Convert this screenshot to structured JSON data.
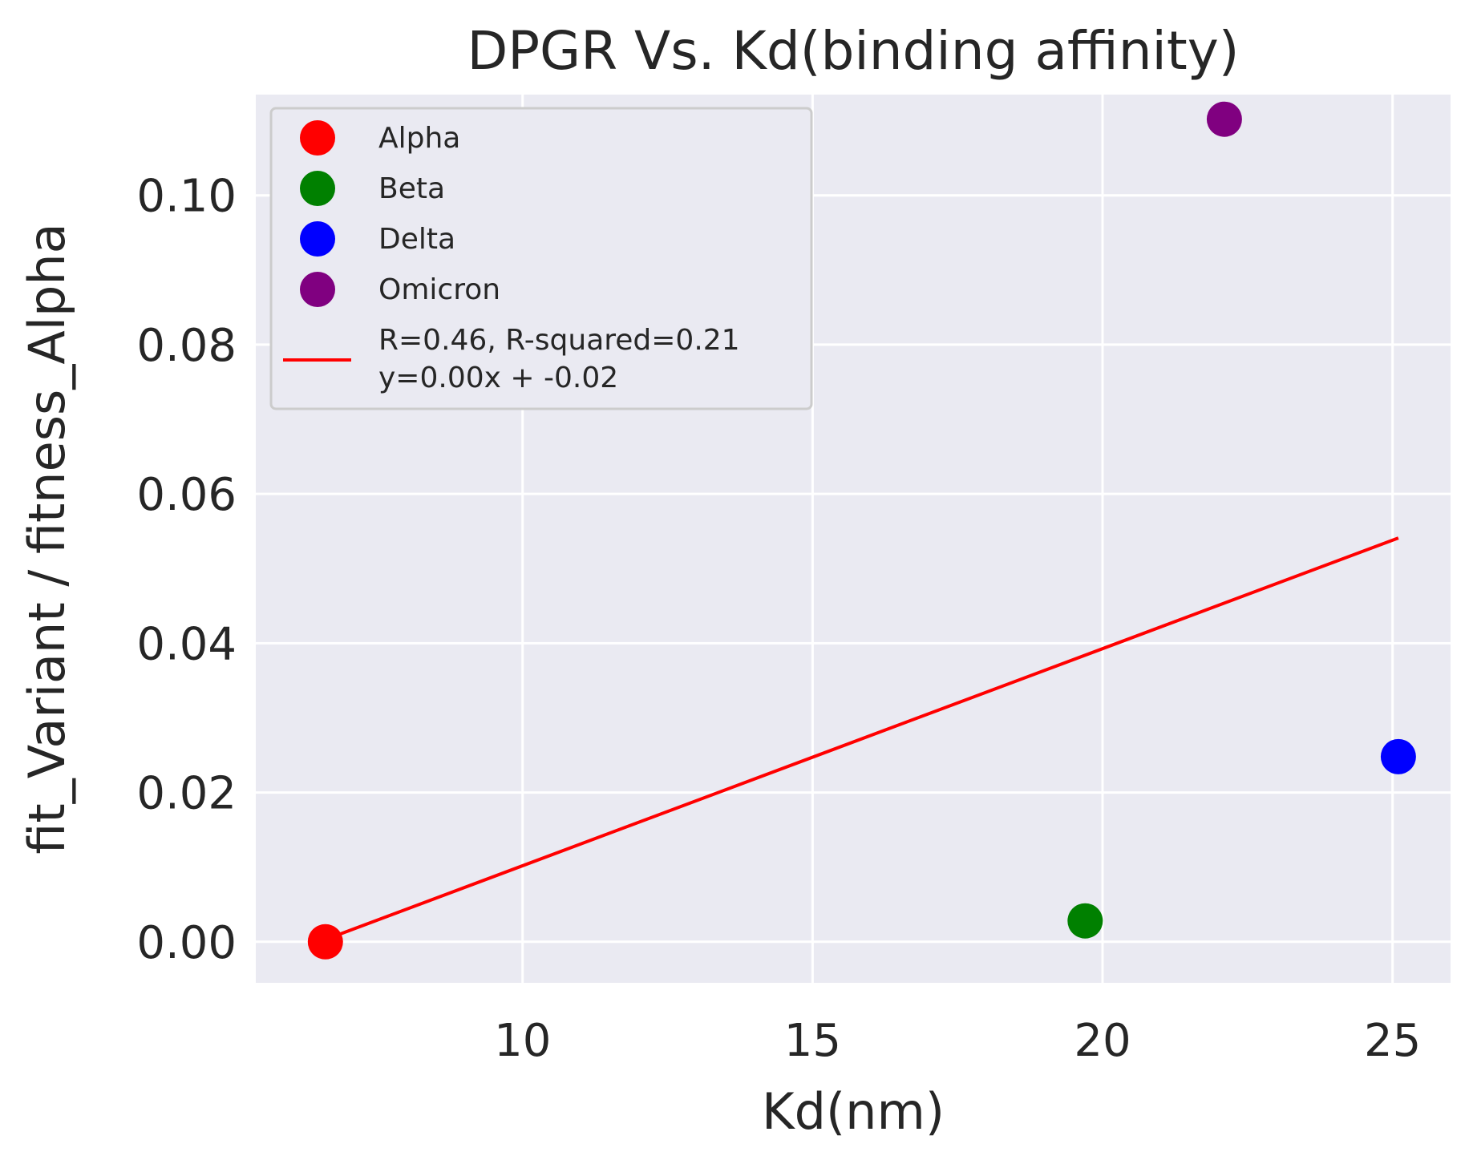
{
  "chart_data": {
    "type": "scatter",
    "title": "DPGR Vs. Kd(binding affinity)",
    "xlabel": "Kd(nm)",
    "ylabel": "fit_Variant / fitness_Alpha",
    "xlim": [
      5.4,
      26.0
    ],
    "ylim": [
      -0.0055,
      0.1135
    ],
    "xticks": [
      10,
      15,
      20,
      25
    ],
    "xtick_labels": [
      "10",
      "15",
      "20",
      "25"
    ],
    "yticks": [
      0.0,
      0.02,
      0.04,
      0.06,
      0.08,
      0.1
    ],
    "ytick_labels": [
      "0.00",
      "0.02",
      "0.04",
      "0.06",
      "0.08",
      "0.10"
    ],
    "grid": true,
    "legend_position": "top-left",
    "series": [
      {
        "name": "Alpha",
        "color": "#ff0000",
        "points": [
          {
            "x": 6.6,
            "y": 0.0
          }
        ]
      },
      {
        "name": "Beta",
        "color": "#008000",
        "points": [
          {
            "x": 19.7,
            "y": 0.0028
          }
        ]
      },
      {
        "name": "Delta",
        "color": "#0000ff",
        "points": [
          {
            "x": 25.1,
            "y": 0.0248
          }
        ]
      },
      {
        "name": "Omicron",
        "color": "#800080",
        "points": [
          {
            "x": 22.1,
            "y": 0.1102
          }
        ]
      }
    ],
    "fit_line": {
      "label_line1": "R=0.46, R-squared=0.21",
      "label_line2": "y=0.00x + -0.02",
      "color": "#ff0000",
      "points": [
        {
          "x": 6.6,
          "y": 0.0003
        },
        {
          "x": 25.1,
          "y": 0.0541
        }
      ]
    },
    "colors": {
      "plot_bg": "#eaeaf2",
      "grid": "#ffffff",
      "text": "#262626"
    }
  }
}
